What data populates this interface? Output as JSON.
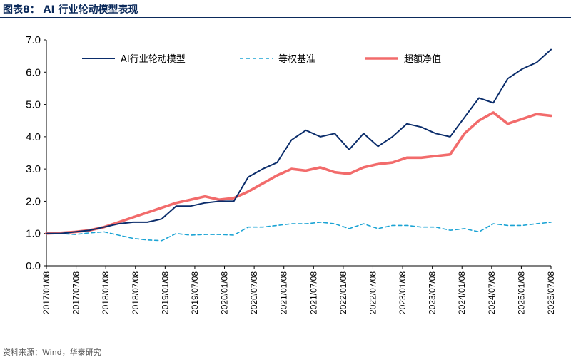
{
  "header": {
    "title": "图表8：  AI 行业轮动模型表现"
  },
  "footer": {
    "source": "资料来源：Wind，华泰研究"
  },
  "colors": {
    "ai": "#0b2d6b",
    "eq": "#1aa3d4",
    "excess": "#f26b6b",
    "rule": "#0b2a5b"
  },
  "chart_data": {
    "type": "line",
    "title": "",
    "xlabel": "",
    "ylabel": "",
    "ylim": [
      0,
      7
    ],
    "yticks": [
      "0.0",
      "1.0",
      "2.0",
      "3.0",
      "4.0",
      "5.0",
      "6.0",
      "7.0"
    ],
    "xticks": [
      "2017/01/08",
      "2017/07/08",
      "2018/01/08",
      "2018/07/08",
      "2019/01/08",
      "2019/07/08",
      "2020/01/08",
      "2020/07/08",
      "2021/01/08",
      "2021/07/08",
      "2022/01/08",
      "2022/07/08",
      "2023/01/08",
      "2023/07/08",
      "2024/01/08",
      "2024/07/08",
      "2025/01/08",
      "2025/07/08"
    ],
    "x": [
      "2017/01",
      "2017/04",
      "2017/07",
      "2017/10",
      "2018/01",
      "2018/04",
      "2018/07",
      "2018/10",
      "2019/01",
      "2019/04",
      "2019/07",
      "2019/10",
      "2020/01",
      "2020/04",
      "2020/07",
      "2020/10",
      "2021/01",
      "2021/04",
      "2021/07",
      "2021/10",
      "2022/01",
      "2022/04",
      "2022/07",
      "2022/10",
      "2023/01",
      "2023/04",
      "2023/07",
      "2023/10",
      "2024/01",
      "2024/04",
      "2024/07",
      "2024/10",
      "2025/01",
      "2025/04",
      "2025/07",
      "2025/08"
    ],
    "legend_position": "top",
    "series": [
      {
        "name": "AI行业轮动模型",
        "style": "solid",
        "values": [
          1.0,
          1.0,
          1.05,
          1.1,
          1.2,
          1.3,
          1.35,
          1.35,
          1.45,
          1.85,
          1.85,
          1.95,
          2.0,
          2.0,
          2.75,
          3.0,
          3.2,
          3.9,
          4.2,
          4.0,
          4.1,
          3.6,
          4.1,
          3.7,
          4.0,
          4.4,
          4.3,
          4.1,
          4.0,
          4.6,
          5.2,
          5.05,
          5.8,
          6.1,
          6.3,
          6.7
        ]
      },
      {
        "name": "等权基准",
        "style": "dashed",
        "values": [
          1.0,
          1.0,
          0.97,
          1.02,
          1.05,
          0.95,
          0.85,
          0.8,
          0.78,
          1.0,
          0.95,
          0.97,
          0.97,
          0.95,
          1.2,
          1.2,
          1.25,
          1.3,
          1.3,
          1.35,
          1.3,
          1.15,
          1.3,
          1.15,
          1.25,
          1.25,
          1.2,
          1.2,
          1.1,
          1.15,
          1.05,
          1.3,
          1.25,
          1.25,
          1.3,
          1.35
        ]
      },
      {
        "name": "超额净值",
        "style": "thick",
        "values": [
          1.0,
          1.02,
          1.05,
          1.1,
          1.2,
          1.35,
          1.5,
          1.65,
          1.8,
          1.95,
          2.05,
          2.15,
          2.05,
          2.1,
          2.3,
          2.55,
          2.8,
          3.0,
          2.95,
          3.05,
          2.9,
          2.85,
          3.05,
          3.15,
          3.2,
          3.35,
          3.35,
          3.4,
          3.45,
          4.1,
          4.5,
          4.75,
          4.4,
          4.55,
          4.7,
          4.65
        ]
      }
    ]
  }
}
